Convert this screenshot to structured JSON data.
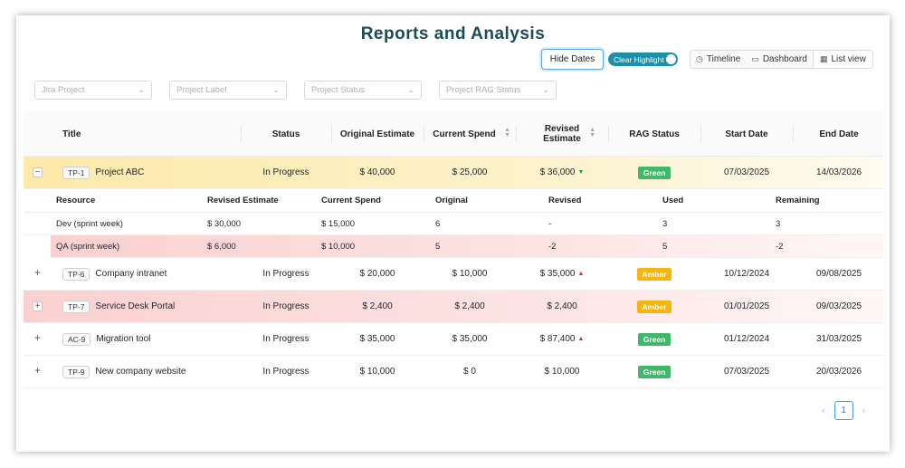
{
  "page_title": "Reports and Analysis",
  "toolbar": {
    "hide_dates_label": "Hide Dates",
    "clear_highlight_label": "Clear Highlight",
    "views": [
      {
        "label": "Timeline",
        "icon": "clock-icon"
      },
      {
        "label": "Dashboard",
        "icon": "dashboard-icon"
      },
      {
        "label": "List view",
        "icon": "grid-icon",
        "active": true
      }
    ]
  },
  "filters": [
    {
      "placeholder": "Jira Project"
    },
    {
      "placeholder": "Project Label"
    },
    {
      "placeholder": "Project Status"
    },
    {
      "placeholder": "Project RAG Status"
    }
  ],
  "columns": {
    "title": "Title",
    "status": "Status",
    "original_estimate": "Original Estimate",
    "current_spend": "Current Spend",
    "revised_estimate": "Revised Estimate",
    "rag_status": "RAG Status",
    "start_date": "Start Date",
    "end_date": "End Date"
  },
  "sub_columns": {
    "resource": "Resource",
    "revised_estimate": "Revised Estimate",
    "current_spend": "Current Spend",
    "original": "Original",
    "revised": "Revised",
    "used": "Used",
    "remaining": "Remaining"
  },
  "rows": [
    {
      "toggle": "−",
      "key": "TP-1",
      "name": "Project ABC",
      "status": "In Progress",
      "original": "$ 40,000",
      "spend": "$ 25,000",
      "revised": "$ 36,000",
      "trend": "down",
      "rag": "Green",
      "start": "07/03/2025",
      "end": "14/03/2026",
      "highlight": "amber"
    },
    {
      "toggle": "+",
      "key": "TP-6",
      "name": "Company intranet",
      "status": "In Progress",
      "original": "$ 20,000",
      "spend": "$ 10,000",
      "revised": "$ 35,000",
      "trend": "up",
      "rag": "Amber",
      "start": "10/12/2024",
      "end": "09/08/2025",
      "highlight": ""
    },
    {
      "toggle": "+",
      "key": "TP-7",
      "name": "Service Desk Portal",
      "status": "In Progress",
      "original": "$ 2,400",
      "spend": "$ 2,400",
      "revised": "$ 2,400",
      "trend": "",
      "rag": "Amber",
      "start": "01/01/2025",
      "end": "09/03/2025",
      "highlight": "red"
    },
    {
      "toggle": "+",
      "key": "AC-9",
      "name": "Migration tool",
      "status": "In Progress",
      "original": "$ 35,000",
      "spend": "$ 35,000",
      "revised": "$ 87,400",
      "trend": "up",
      "rag": "Green",
      "start": "01/12/2024",
      "end": "31/03/2025",
      "highlight": ""
    },
    {
      "toggle": "+",
      "key": "TP-9",
      "name": "New company website",
      "status": "In Progress",
      "original": "$ 10,000",
      "spend": "$ 0",
      "revised": "$ 10,000",
      "trend": "",
      "rag": "Green",
      "start": "07/03/2025",
      "end": "20/03/2026",
      "highlight": ""
    }
  ],
  "sub_rows": [
    {
      "resource": "Dev (sprint week)",
      "revised_estimate": "$ 30,000",
      "current_spend": "$ 15,000",
      "original": "6",
      "revised": "-",
      "used": "3",
      "remaining": "3",
      "highlight": ""
    },
    {
      "resource": "QA (sprint week)",
      "revised_estimate": "$ 6,000",
      "current_spend": "$ 10,000",
      "original": "5",
      "revised": "-2",
      "used": "5",
      "remaining": "-2",
      "highlight": "red"
    }
  ],
  "pagination": {
    "current": "1"
  },
  "colors": {
    "green": "#3fb86a",
    "amber": "#f5b50e",
    "accent": "#1d8fa8",
    "title": "#1c4b5a"
  }
}
